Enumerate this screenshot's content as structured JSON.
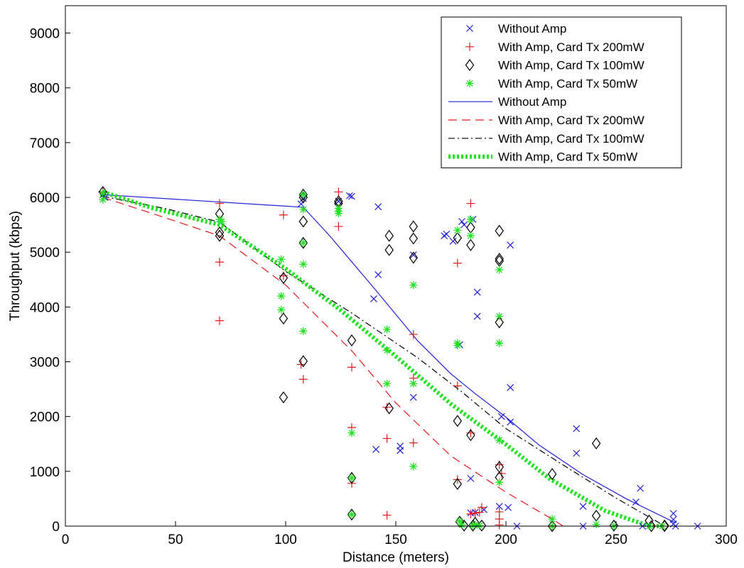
{
  "chart_data": {
    "type": "scatter",
    "title": "",
    "xlabel": "Distance (meters)",
    "ylabel": "Throughput (kbps)",
    "xlim": [
      0,
      300
    ],
    "ylim": [
      0,
      9500
    ],
    "xticks": [
      0,
      50,
      100,
      150,
      200,
      250,
      300
    ],
    "yticks": [
      0,
      1000,
      2000,
      3000,
      4000,
      5000,
      6000,
      7000,
      8000,
      9000
    ],
    "grid": false,
    "legend_position": "top-right",
    "series": [
      {
        "name": "Without Amp",
        "kind": "markers",
        "marker": "x",
        "color": "#1f1fd6",
        "points": [
          [
            17,
            6050
          ],
          [
            18,
            6000
          ],
          [
            107,
            5880
          ],
          [
            108,
            5980
          ],
          [
            124,
            5930
          ],
          [
            129,
            6030
          ],
          [
            130,
            6020
          ],
          [
            140,
            4150
          ],
          [
            142,
            5830
          ],
          [
            142,
            4590
          ],
          [
            141,
            1400
          ],
          [
            152,
            1460
          ],
          [
            152,
            1380
          ],
          [
            158,
            2350
          ],
          [
            158,
            4950
          ],
          [
            172,
            5300
          ],
          [
            173,
            5330
          ],
          [
            176,
            5200
          ],
          [
            179,
            3310
          ],
          [
            180,
            5560
          ],
          [
            181,
            5500
          ],
          [
            184,
            870
          ],
          [
            185,
            5600
          ],
          [
            187,
            4270
          ],
          [
            187,
            3830
          ],
          [
            184,
            240
          ],
          [
            186,
            250
          ],
          [
            190,
            300
          ],
          [
            197,
            360
          ],
          [
            198,
            2000
          ],
          [
            202,
            5130
          ],
          [
            202,
            2530
          ],
          [
            202,
            1900
          ],
          [
            201,
            340
          ],
          [
            205,
            0
          ],
          [
            232,
            1780
          ],
          [
            232,
            1330
          ],
          [
            235,
            360
          ],
          [
            235,
            0
          ],
          [
            259,
            440
          ],
          [
            261,
            690
          ],
          [
            262,
            0
          ],
          [
            276,
            230
          ],
          [
            276,
            120
          ],
          [
            276,
            40
          ],
          [
            277,
            0
          ],
          [
            287,
            0
          ]
        ]
      },
      {
        "name": "With Amp, Card Tx 200mW",
        "kind": "markers",
        "marker": "+",
        "color": "#e31a1c",
        "points": [
          [
            17,
            6100
          ],
          [
            70,
            5890
          ],
          [
            70,
            4820
          ],
          [
            70,
            3750
          ],
          [
            99,
            5680
          ],
          [
            99,
            4570
          ],
          [
            107,
            2950
          ],
          [
            108,
            2680
          ],
          [
            124,
            6100
          ],
          [
            124,
            5470
          ],
          [
            130,
            2900
          ],
          [
            130,
            1800
          ],
          [
            130,
            780
          ],
          [
            146,
            200
          ],
          [
            146,
            1600
          ],
          [
            146,
            2170
          ],
          [
            158,
            3500
          ],
          [
            158,
            2700
          ],
          [
            158,
            1520
          ],
          [
            178,
            4800
          ],
          [
            178,
            2560
          ],
          [
            178,
            850
          ],
          [
            184,
            5890
          ],
          [
            184,
            1700
          ],
          [
            184,
            220
          ],
          [
            186,
            240
          ],
          [
            188,
            250
          ],
          [
            189,
            340
          ],
          [
            197,
            260
          ],
          [
            197,
            130
          ],
          [
            198,
            960
          ],
          [
            197,
            1120
          ],
          [
            197,
            20
          ],
          [
            221,
            0
          ]
        ]
      },
      {
        "name": "With Amp, Card Tx 100mW",
        "kind": "markers",
        "marker": "diamond",
        "color": "#000000",
        "points": [
          [
            17,
            6100
          ],
          [
            70,
            5700
          ],
          [
            70,
            5360
          ],
          [
            70,
            5300
          ],
          [
            99,
            4530
          ],
          [
            99,
            3790
          ],
          [
            99,
            2350
          ],
          [
            108,
            6050
          ],
          [
            108,
            6000
          ],
          [
            108,
            5560
          ],
          [
            108,
            5170
          ],
          [
            108,
            3010
          ],
          [
            124,
            5930
          ],
          [
            124,
            5890
          ],
          [
            130,
            3390
          ],
          [
            130,
            880
          ],
          [
            130,
            210
          ],
          [
            147,
            5300
          ],
          [
            147,
            5040
          ],
          [
            147,
            2150
          ],
          [
            158,
            5470
          ],
          [
            158,
            5250
          ],
          [
            158,
            4900
          ],
          [
            178,
            5260
          ],
          [
            178,
            1920
          ],
          [
            178,
            770
          ],
          [
            184,
            5450
          ],
          [
            184,
            5130
          ],
          [
            184,
            1660
          ],
          [
            179,
            80
          ],
          [
            181,
            10
          ],
          [
            185,
            10
          ],
          [
            186,
            60
          ],
          [
            189,
            10
          ],
          [
            197,
            5390
          ],
          [
            197,
            4880
          ],
          [
            197,
            4840
          ],
          [
            197,
            3720
          ],
          [
            197,
            1080
          ],
          [
            197,
            890
          ],
          [
            221,
            950
          ],
          [
            221,
            0
          ],
          [
            241,
            1510
          ],
          [
            241,
            190
          ],
          [
            249,
            10
          ],
          [
            265,
            100
          ],
          [
            266,
            0
          ],
          [
            272,
            10
          ],
          [
            272,
            0
          ]
        ]
      },
      {
        "name": "With Amp, Card Tx 50mW",
        "kind": "markers",
        "marker": "asterisk",
        "color": "#22e022",
        "points": [
          [
            17,
            6080
          ],
          [
            17,
            5960
          ],
          [
            70,
            5600
          ],
          [
            71,
            5560
          ],
          [
            98,
            4870
          ],
          [
            98,
            4200
          ],
          [
            98,
            3950
          ],
          [
            108,
            6050
          ],
          [
            108,
            5780
          ],
          [
            108,
            5170
          ],
          [
            108,
            4780
          ],
          [
            108,
            3560
          ],
          [
            124,
            5800
          ],
          [
            124,
            5750
          ],
          [
            124,
            5710
          ],
          [
            130,
            1700
          ],
          [
            130,
            880
          ],
          [
            130,
            210
          ],
          [
            146,
            3590
          ],
          [
            146,
            3210
          ],
          [
            146,
            2600
          ],
          [
            158,
            4400
          ],
          [
            158,
            2600
          ],
          [
            158,
            1090
          ],
          [
            178,
            5400
          ],
          [
            178,
            3340
          ],
          [
            178,
            3300
          ],
          [
            179,
            90
          ],
          [
            180,
            20
          ],
          [
            184,
            5600
          ],
          [
            184,
            5300
          ],
          [
            185,
            10
          ],
          [
            186,
            30
          ],
          [
            188,
            10
          ],
          [
            197,
            4680
          ],
          [
            197,
            3830
          ],
          [
            197,
            3340
          ],
          [
            197,
            1570
          ],
          [
            197,
            800
          ],
          [
            221,
            130
          ],
          [
            221,
            0
          ],
          [
            241,
            30
          ],
          [
            249,
            0
          ],
          [
            265,
            0
          ],
          [
            271,
            0
          ]
        ]
      },
      {
        "name": "Without Amp",
        "kind": "line",
        "dash": "solid",
        "color": "#1f1fd6",
        "points": [
          [
            17,
            6050
          ],
          [
            108,
            5820
          ],
          [
            120,
            5300
          ],
          [
            140,
            4350
          ],
          [
            160,
            3380
          ],
          [
            175,
            2780
          ],
          [
            186,
            2420
          ],
          [
            200,
            1990
          ],
          [
            215,
            1480
          ],
          [
            235,
            940
          ],
          [
            255,
            490
          ],
          [
            277,
            60
          ]
        ]
      },
      {
        "name": "With Amp, Card Tx 200mW",
        "kind": "line",
        "dash": "dashed",
        "color": "#e31a1c",
        "points": [
          [
            17,
            6000
          ],
          [
            40,
            5700
          ],
          [
            70,
            5300
          ],
          [
            100,
            4400
          ],
          [
            130,
            3200
          ],
          [
            150,
            2250
          ],
          [
            175,
            1280
          ],
          [
            200,
            620
          ],
          [
            220,
            150
          ],
          [
            226,
            0
          ]
        ]
      },
      {
        "name": "With Amp, Card Tx 100mW",
        "kind": "line",
        "dash": "dashdot",
        "color": "#000000",
        "points": [
          [
            17,
            6020
          ],
          [
            45,
            5800
          ],
          [
            70,
            5550
          ],
          [
            100,
            4650
          ],
          [
            130,
            3890
          ],
          [
            160,
            3070
          ],
          [
            180,
            2450
          ],
          [
            200,
            1780
          ],
          [
            225,
            1140
          ],
          [
            250,
            510
          ],
          [
            270,
            50
          ]
        ]
      },
      {
        "name": "With Amp, Card Tx 50mW",
        "kind": "line",
        "dash": "dotted",
        "color": "#22e022",
        "points": [
          [
            17,
            6100
          ],
          [
            40,
            5800
          ],
          [
            70,
            5500
          ],
          [
            100,
            4700
          ],
          [
            125,
            3940
          ],
          [
            150,
            3100
          ],
          [
            175,
            2230
          ],
          [
            200,
            1490
          ],
          [
            220,
            860
          ],
          [
            245,
            280
          ],
          [
            265,
            0
          ],
          [
            272,
            0
          ]
        ]
      }
    ]
  }
}
